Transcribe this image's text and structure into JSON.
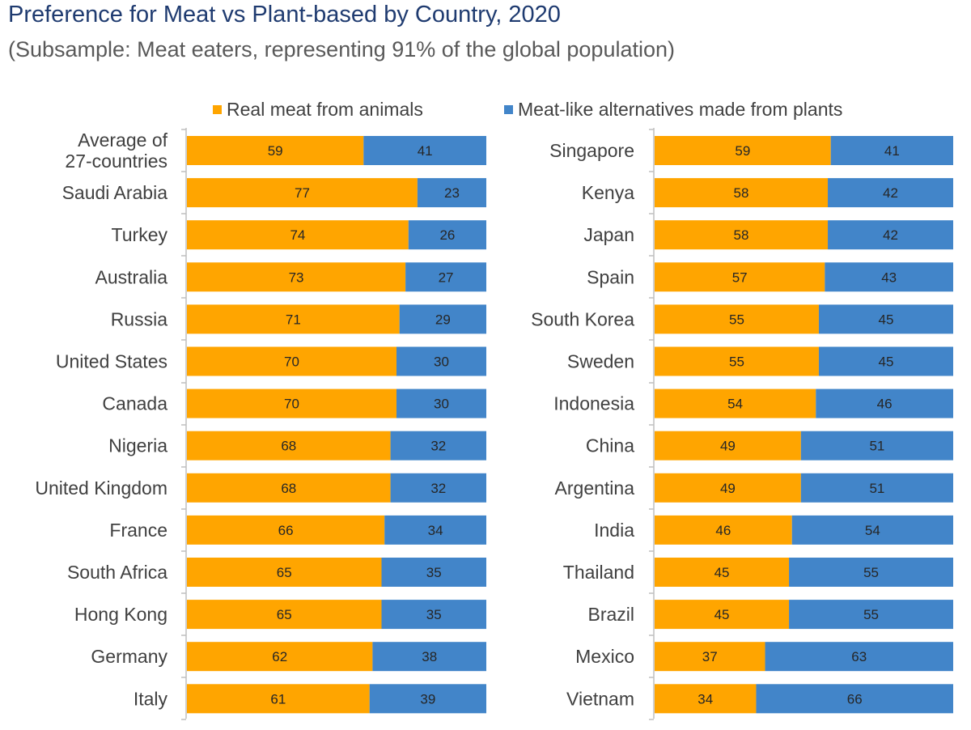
{
  "chart_data": {
    "type": "bar",
    "orientation": "horizontal",
    "stacked": true,
    "title": "Preference for Meat vs Plant-based by Country, 2020",
    "subtitle": "(Subsample: Meat eaters, representing 91% of the global population)",
    "legend": [
      {
        "name": "Real meat from animals",
        "color": "#ffa500"
      },
      {
        "name": "Meat-like alternatives made from plants",
        "color": "#4285c9"
      }
    ],
    "legend_position": "top",
    "xlim": [
      0,
      100
    ],
    "grid": false,
    "panels": [
      {
        "categories": [
          [
            "Average of",
            "27-countries"
          ],
          [
            "Saudi Arabia"
          ],
          [
            "Turkey"
          ],
          [
            "Australia"
          ],
          [
            "Russia"
          ],
          [
            "United States"
          ],
          [
            "Canada"
          ],
          [
            "Nigeria"
          ],
          [
            "United Kingdom"
          ],
          [
            "France"
          ],
          [
            "South Africa"
          ],
          [
            "Hong Kong"
          ],
          [
            "Germany"
          ],
          [
            "Italy"
          ]
        ],
        "series": [
          {
            "name": "Real meat from animals",
            "values": [
              59,
              77,
              74,
              73,
              71,
              70,
              70,
              68,
              68,
              66,
              65,
              65,
              62,
              61
            ]
          },
          {
            "name": "Meat-like alternatives made from plants",
            "values": [
              41,
              23,
              26,
              27,
              29,
              30,
              30,
              32,
              32,
              34,
              35,
              35,
              38,
              39
            ]
          }
        ]
      },
      {
        "categories": [
          [
            "Singapore"
          ],
          [
            "Kenya"
          ],
          [
            "Japan"
          ],
          [
            "Spain"
          ],
          [
            "South Korea"
          ],
          [
            "Sweden"
          ],
          [
            "Indonesia"
          ],
          [
            "China"
          ],
          [
            "Argentina"
          ],
          [
            "India"
          ],
          [
            "Thailand"
          ],
          [
            "Brazil"
          ],
          [
            "Mexico"
          ],
          [
            "Vietnam"
          ]
        ],
        "series": [
          {
            "name": "Real meat from animals",
            "values": [
              59,
              58,
              58,
              57,
              55,
              55,
              54,
              49,
              49,
              46,
              45,
              45,
              37,
              34
            ]
          },
          {
            "name": "Meat-like alternatives made from plants",
            "values": [
              41,
              42,
              42,
              43,
              45,
              45,
              46,
              51,
              51,
              54,
              55,
              55,
              63,
              66
            ]
          }
        ]
      }
    ]
  }
}
